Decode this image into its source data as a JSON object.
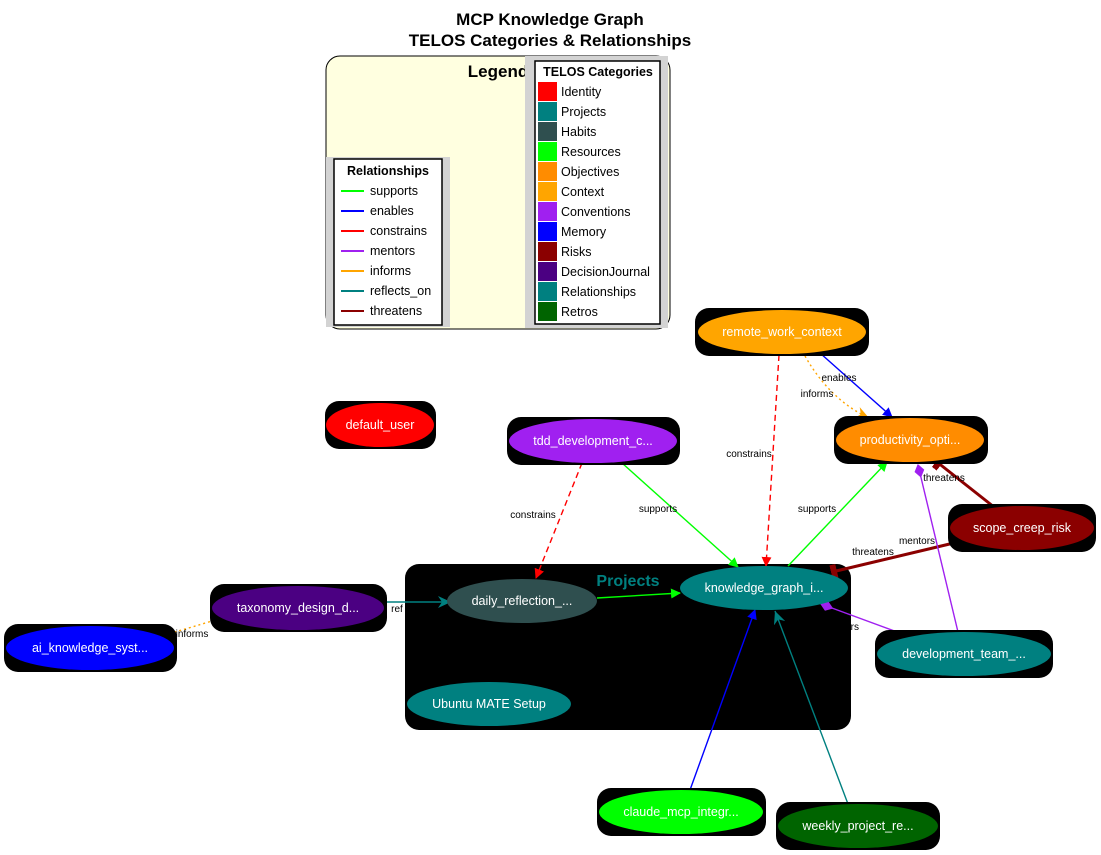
{
  "title_line1": "MCP Knowledge Graph",
  "title_line2": "TELOS Categories & Relationships",
  "legend": {
    "title": "Legend",
    "relationships_title": "Relationships",
    "relationships": [
      {
        "label": "supports",
        "color": "#00ff00"
      },
      {
        "label": "enables",
        "color": "#0000ff"
      },
      {
        "label": "constrains",
        "color": "#ff0000"
      },
      {
        "label": "mentors",
        "color": "#a020f0"
      },
      {
        "label": "informs",
        "color": "#ffa500"
      },
      {
        "label": "reflects_on",
        "color": "#008080"
      },
      {
        "label": "threatens",
        "color": "#8b0000"
      }
    ],
    "categories_title": "TELOS Categories",
    "categories": [
      {
        "label": "Identity",
        "color": "#ff0000"
      },
      {
        "label": "Projects",
        "color": "#008080"
      },
      {
        "label": "Habits",
        "color": "#2f4f4f"
      },
      {
        "label": "Resources",
        "color": "#00ff00"
      },
      {
        "label": "Objectives",
        "color": "#ff8c00"
      },
      {
        "label": "Context",
        "color": "#ffa500"
      },
      {
        "label": "Conventions",
        "color": "#a020f0"
      },
      {
        "label": "Memory",
        "color": "#0000ff"
      },
      {
        "label": "Risks",
        "color": "#8b0000"
      },
      {
        "label": "DecisionJournal",
        "color": "#4b0082"
      },
      {
        "label": "Relationships",
        "color": "#008080"
      },
      {
        "label": "Retros",
        "color": "#006400"
      }
    ]
  },
  "cluster_label": "Projects",
  "nodes": {
    "remote_work": {
      "label": "remote_work_context",
      "color": "#ffa500",
      "boxed": true
    },
    "default_user": {
      "label": "default_user",
      "color": "#ff0000",
      "boxed": true
    },
    "tdd": {
      "label": "tdd_development_c...",
      "color": "#a020f0",
      "boxed": true
    },
    "productivity": {
      "label": "productivity_opti...",
      "color": "#ff8c00",
      "boxed": true
    },
    "scope_creep": {
      "label": "scope_creep_risk",
      "color": "#8b0000",
      "boxed": true
    },
    "taxonomy": {
      "label": "taxonomy_design_d...",
      "color": "#4b0082",
      "boxed": true
    },
    "ai_knowledge": {
      "label": "ai_knowledge_syst...",
      "color": "#0000ff",
      "boxed": true
    },
    "daily_reflection": {
      "label": "daily_reflection_...",
      "color": "#2f4f4f",
      "boxed": false
    },
    "knowledge_graph": {
      "label": "knowledge_graph_i...",
      "color": "#008080",
      "boxed": false
    },
    "ubuntu": {
      "label": "Ubuntu MATE Setup",
      "color": "#008080",
      "boxed": false
    },
    "dev_team": {
      "label": "development_team_...",
      "color": "#008080",
      "boxed": true
    },
    "claude_mcp": {
      "label": "claude_mcp_integr...",
      "color": "#00ff00",
      "boxed": true
    },
    "weekly": {
      "label": "weekly_project_re...",
      "color": "#006400",
      "boxed": true
    }
  },
  "edges": [
    {
      "from": "remote_work",
      "to": "knowledge_graph",
      "label": "constrains",
      "color": "#ff0000",
      "style": "dashed"
    },
    {
      "from": "remote_work",
      "to": "productivity",
      "label": "enables",
      "color": "#0000ff",
      "style": "solid"
    },
    {
      "from": "remote_work",
      "to": "productivity",
      "label": "informs",
      "color": "#ffa500",
      "style": "dotted"
    },
    {
      "from": "tdd",
      "to": "daily_reflection",
      "label": "constrains",
      "color": "#ff0000",
      "style": "dashed"
    },
    {
      "from": "tdd",
      "to": "knowledge_graph",
      "label": "supports",
      "color": "#00ff00",
      "style": "solid"
    },
    {
      "from": "knowledge_graph",
      "to": "productivity",
      "label": "supports",
      "color": "#00ff00",
      "style": "solid"
    },
    {
      "from": "scope_creep",
      "to": "productivity",
      "label": "threatens",
      "color": "#8b0000",
      "style": "solid"
    },
    {
      "from": "scope_creep",
      "to": "knowledge_graph",
      "label": "threatens",
      "color": "#8b0000",
      "style": "solid"
    },
    {
      "from": "dev_team",
      "to": "productivity",
      "label": "mentors",
      "color": "#a020f0",
      "style": "solid"
    },
    {
      "from": "dev_team",
      "to": "knowledge_graph",
      "label": "ors",
      "color": "#a020f0",
      "style": "solid"
    },
    {
      "from": "daily_reflection",
      "to": "knowledge_graph",
      "label": "",
      "color": "#00ff00",
      "style": "solid"
    },
    {
      "from": "taxonomy",
      "to": "daily_reflection",
      "label": "ref",
      "color": "#008080",
      "style": "solid"
    },
    {
      "from": "ai_knowledge",
      "to": "taxonomy",
      "label": "informs",
      "color": "#ffa500",
      "style": "dotted"
    },
    {
      "from": "claude_mcp",
      "to": "knowledge_graph",
      "label": "",
      "color": "#0000ff",
      "style": "solid"
    },
    {
      "from": "weekly",
      "to": "knowledge_graph",
      "label": "",
      "color": "#008080",
      "style": "solid"
    }
  ]
}
